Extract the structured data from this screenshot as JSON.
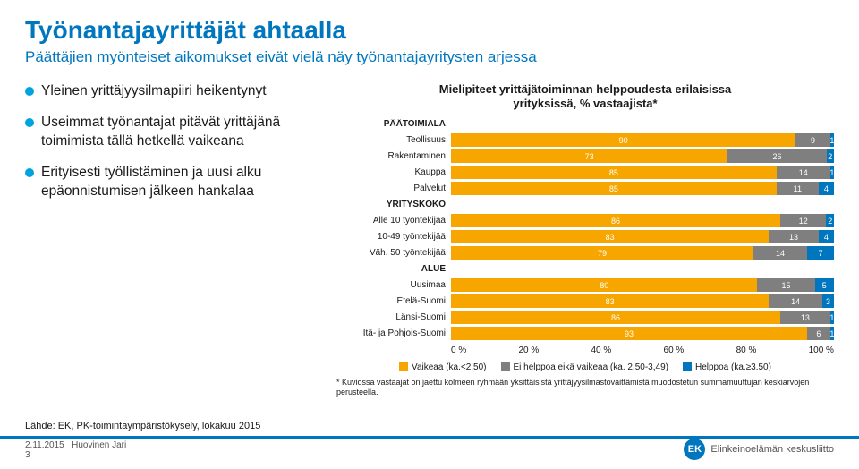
{
  "title": "Työnantajayrittäjät ahtaalla",
  "subtitle": "Päättäjien myönteiset aikomukset eivät vielä näy työnantajayritysten arjessa",
  "bullets": [
    "Yleinen yrittäjyysilmapiiri heikentynyt",
    "Useimmat työnantajat pitävät yrittäjänä toimimista tällä hetkellä vaikeana",
    "Erityisesti työllistäminen ja uusi alku epäonnistumisen jälkeen hankalaa"
  ],
  "chart": {
    "title_l1": "Mielipiteet yrittäjätoiminnan helppoudesta erilaisissa",
    "title_l2": "yrityksissä, % vastaajista*",
    "colors": {
      "vaikea": "#f7a600",
      "neutraali": "#7f7f7f",
      "helppoa": "#0076be"
    },
    "groups": [
      {
        "label": "PÄÄTOIMIALA",
        "rows": [
          {
            "label": "Teollisuus",
            "v": [
              90,
              9,
              1
            ]
          },
          {
            "label": "Rakentaminen",
            "v": [
              73,
              26,
              2
            ]
          },
          {
            "label": "Kauppa",
            "v": [
              85,
              14,
              1
            ]
          },
          {
            "label": "Palvelut",
            "v": [
              85,
              11,
              4
            ]
          }
        ]
      },
      {
        "label": "YRITYSKOKO",
        "rows": [
          {
            "label": "Alle 10 työntekijää",
            "v": [
              86,
              12,
              2
            ]
          },
          {
            "label": "10-49 työntekijää",
            "v": [
              83,
              13,
              4
            ]
          },
          {
            "label": "Väh. 50 työntekijää",
            "v": [
              79,
              14,
              7
            ]
          }
        ]
      },
      {
        "label": "ALUE",
        "rows": [
          {
            "label": "Uusimaa",
            "v": [
              80,
              15,
              5
            ]
          },
          {
            "label": "Etelä-Suomi",
            "v": [
              83,
              14,
              3
            ]
          },
          {
            "label": "Länsi-Suomi",
            "v": [
              86,
              13,
              1
            ]
          },
          {
            "label": "Itä- ja Pohjois-Suomi",
            "v": [
              93,
              6,
              1
            ]
          }
        ]
      }
    ],
    "axis": [
      "0 %",
      "20 %",
      "40 %",
      "60 %",
      "80 %",
      "100 %"
    ],
    "legend": [
      {
        "label": "Vaikeaa (ka.<2,50)",
        "c": "#f7a600"
      },
      {
        "label": "Ei helppoa eikä vaikeaa (ka. 2,50-3,49)",
        "c": "#7f7f7f"
      },
      {
        "label": "Helppoa (ka.≥3.50)",
        "c": "#0076be"
      }
    ],
    "note": "* Kuviossa vastaajat on jaettu kolmeen ryhmään yksittäisistä yrittäjyysilmastovaittämistä muodostetun summamuuttujan keskiarvojen perusteella."
  },
  "source": "Lähde: EK, PK-toimintaympäristökysely, lokakuu 2015",
  "footer_date": "2.11.2015",
  "footer_author": "Huovinen Jari",
  "footer_page": "3",
  "logo_text": "Elinkeinoelämän keskusliitto",
  "logo_mark": "EK"
}
